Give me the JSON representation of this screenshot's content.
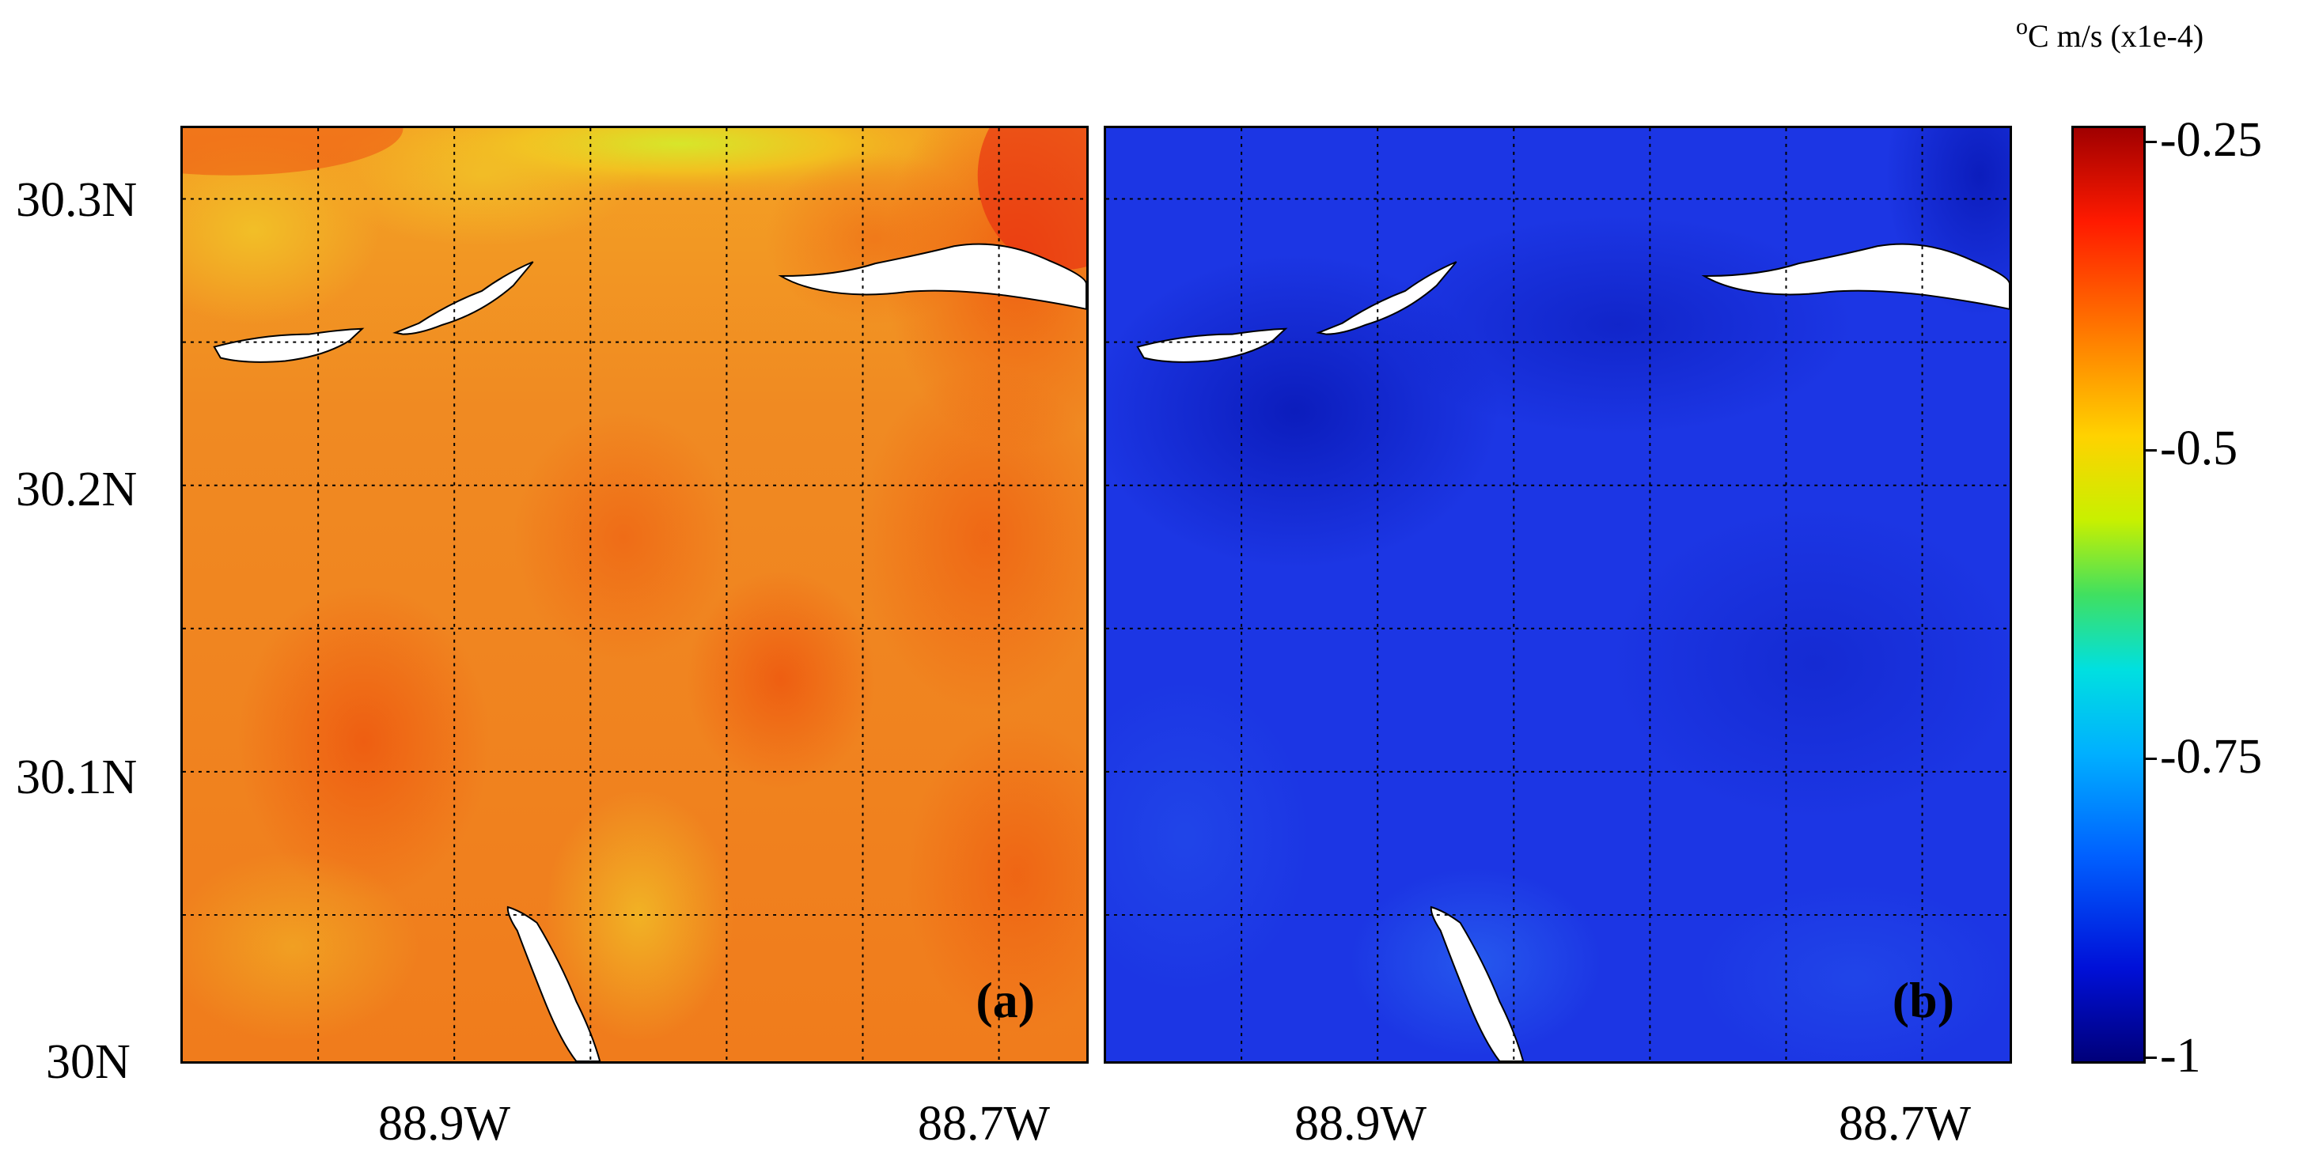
{
  "units": {
    "prefix": "o",
    "main": "C m/s (x1e-4)"
  },
  "axes": {
    "lat_labels": [
      "30.3N",
      "30.2N",
      "30.1N",
      "30N"
    ],
    "lon_labels_a": [
      "88.9W",
      "88.7W"
    ],
    "lon_labels_b": [
      "88.9W",
      "88.7W"
    ]
  },
  "panels": [
    {
      "label": "(a)",
      "colormap_value_range": [
        -0.62,
        -0.3
      ],
      "dominant_color": "#f07a1e"
    },
    {
      "label": "(b)",
      "colormap_value_range": [
        -1.0,
        -0.87
      ],
      "dominant_color": "#1e2fe0"
    }
  ],
  "colorbar": {
    "ticks": [
      "-0.25",
      "-0.5",
      "-0.75",
      "-1"
    ],
    "range": [
      -1,
      -0.25
    ],
    "colormap": "jet"
  },
  "land_color": "#ffffff",
  "grid": "dotted black lines"
}
